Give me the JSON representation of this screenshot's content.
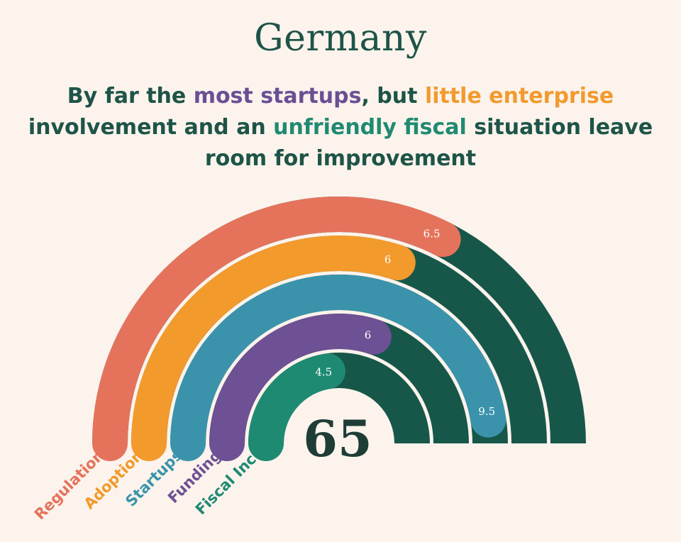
{
  "title": "Germany",
  "subtitle": {
    "p1": "By far the ",
    "h1": "most startups",
    "p2": ", but ",
    "h2": "little enterprise",
    "p3": "involvement and an ",
    "h3": "unfriendly fiscal",
    "p4": " situation leave",
    "p5": "room for improvement"
  },
  "chart_data": {
    "type": "radial-bar",
    "overall_score": "65",
    "max_value": 10,
    "track_color": "#17574a",
    "series": [
      {
        "name": "Regulation",
        "value": 6.5,
        "label": "6.5",
        "color": "#e5735c"
      },
      {
        "name": "Adoption",
        "value": 6,
        "label": "6",
        "color": "#f29a2b"
      },
      {
        "name": "Startups",
        "value": 9.5,
        "label": "9.5",
        "color": "#3a93ab"
      },
      {
        "name": "Funding",
        "value": 6,
        "label": "6",
        "color": "#6e5094"
      },
      {
        "name": "Fiscal Inc.",
        "value": 4.5,
        "label": "4.5",
        "color": "#1f8a72"
      }
    ]
  }
}
